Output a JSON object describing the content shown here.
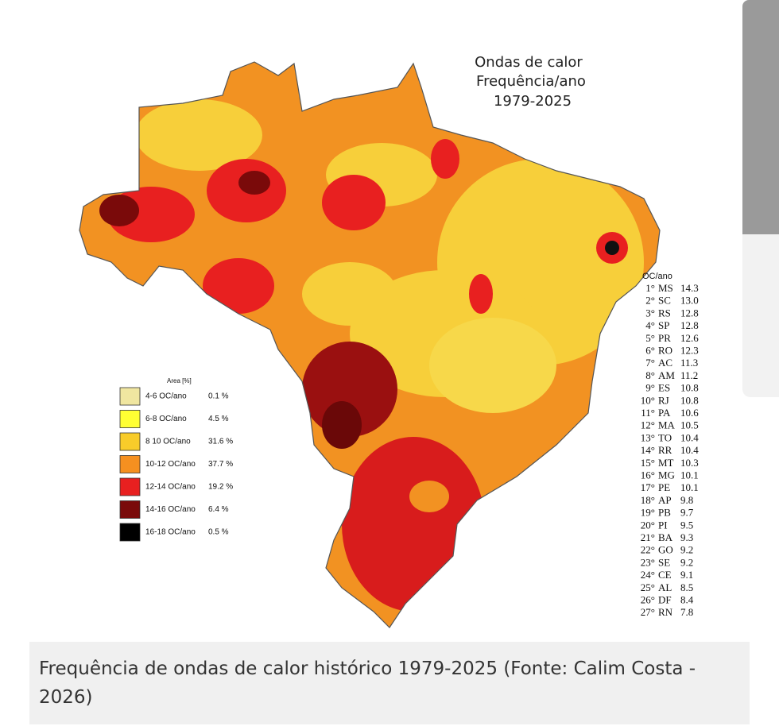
{
  "map": {
    "title": [
      "Ondas de calor",
      "Frequência/ano",
      "1979-2025"
    ],
    "legend": {
      "title": "Area [%]",
      "entries": [
        {
          "label": "4-6 OC/ano",
          "share": "0.1 %",
          "color": "#f0e6a0"
        },
        {
          "label": "6-8 OC/ano",
          "share": "4.5 %",
          "color": "#ffff33"
        },
        {
          "label": "8 10 OC/ano",
          "share": "31.6 %",
          "color": "#f8cc2a"
        },
        {
          "label": "10-12 OC/ano",
          "share": "37.7 %",
          "color": "#f59020"
        },
        {
          "label": "12-14 OC/ano",
          "share": "19.2 %",
          "color": "#e82020"
        },
        {
          "label": "14-16 OC/ano",
          "share": "6.4 %",
          "color": "#7a0a0a"
        },
        {
          "label": "16-18 OC/ano",
          "share": "0.5 %",
          "color": "#000000"
        }
      ]
    },
    "ranking": {
      "title": "OC/ano",
      "rows": [
        [
          "1°",
          "MS",
          "14.3"
        ],
        [
          "2°",
          "SC",
          "13.0"
        ],
        [
          "3°",
          "RS",
          "12.8"
        ],
        [
          "4°",
          "SP",
          "12.8"
        ],
        [
          "5°",
          "PR",
          "12.6"
        ],
        [
          "6°",
          "RO",
          "12.3"
        ],
        [
          "7°",
          "AC",
          "11.3"
        ],
        [
          "8°",
          "AM",
          "11.2"
        ],
        [
          "9°",
          "ES",
          "10.8"
        ],
        [
          "10°",
          "RJ",
          "10.8"
        ],
        [
          "11°",
          "PA",
          "10.6"
        ],
        [
          "12°",
          "MA",
          "10.5"
        ],
        [
          "13°",
          "TO",
          "10.4"
        ],
        [
          "14°",
          "RR",
          "10.4"
        ],
        [
          "15°",
          "MT",
          "10.3"
        ],
        [
          "16°",
          "MG",
          "10.1"
        ],
        [
          "17°",
          "PE",
          "10.1"
        ],
        [
          "18°",
          "AP",
          "9.8"
        ],
        [
          "19°",
          "PB",
          "9.7"
        ],
        [
          "20°",
          "PI",
          "9.5"
        ],
        [
          "21°",
          "BA",
          "9.3"
        ],
        [
          "22°",
          "GO",
          "9.2"
        ],
        [
          "23°",
          "SE",
          "9.2"
        ],
        [
          "24°",
          "CE",
          "9.1"
        ],
        [
          "25°",
          "AL",
          "8.5"
        ],
        [
          "26°",
          "DF",
          "8.4"
        ],
        [
          "27°",
          "RN",
          "7.8"
        ]
      ]
    }
  },
  "caption": "Frequência de ondas de calor histórico 1979-2025 (Fonte: Calim Costa - 2026)"
}
